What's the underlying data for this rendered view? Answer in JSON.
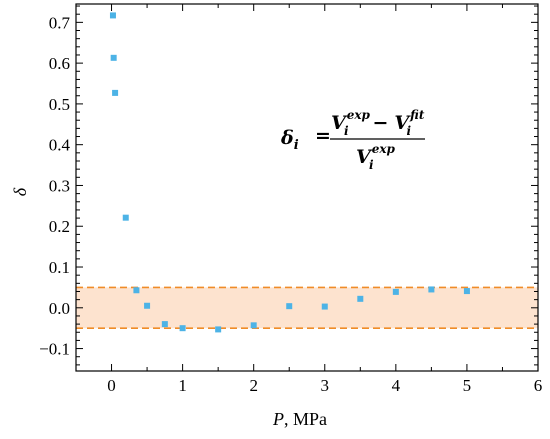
{
  "chart_data": {
    "type": "scatter",
    "xlabel": {
      "var": "P",
      "unit": ", MPa"
    },
    "ylabel": "δ",
    "xlim": [
      -0.5,
      6
    ],
    "ylim": [
      -0.155,
      0.745
    ],
    "xticks": [
      0,
      1,
      2,
      3,
      4,
      5,
      6
    ],
    "xtick_labels": [
      "0",
      "1",
      "2",
      "3",
      "4",
      "5",
      "6"
    ],
    "yticks": [
      -0.1,
      0.0,
      0.1,
      0.2,
      0.3,
      0.4,
      0.5,
      0.6,
      0.7
    ],
    "ytick_labels": [
      "−0.1",
      "0.0",
      "0.1",
      "0.2",
      "0.3",
      "0.4",
      "0.5",
      "0.6",
      "0.7"
    ],
    "grid": false,
    "points": [
      {
        "x": 0.02,
        "y": 0.717
      },
      {
        "x": 0.03,
        "y": 0.613
      },
      {
        "x": 0.05,
        "y": 0.527
      },
      {
        "x": 0.2,
        "y": 0.221
      },
      {
        "x": 0.35,
        "y": 0.043
      },
      {
        "x": 0.5,
        "y": 0.005
      },
      {
        "x": 0.75,
        "y": -0.04
      },
      {
        "x": 1.0,
        "y": -0.05
      },
      {
        "x": 1.5,
        "y": -0.053
      },
      {
        "x": 2.0,
        "y": -0.043
      },
      {
        "x": 2.5,
        "y": 0.004
      },
      {
        "x": 3.0,
        "y": 0.003
      },
      {
        "x": 3.5,
        "y": 0.022
      },
      {
        "x": 4.0,
        "y": 0.039
      },
      {
        "x": 4.5,
        "y": 0.045
      },
      {
        "x": 5.0,
        "y": 0.041
      }
    ],
    "band": {
      "low": -0.05,
      "high": 0.05
    },
    "formula": {
      "lhs": "δ",
      "lhs_sub": "i",
      "num_a": "V",
      "num_a_sub": "i",
      "num_a_sup": "exp",
      "minus": "−",
      "num_b": "V",
      "num_b_sub": "i",
      "num_b_sup": "fit",
      "den": "V",
      "den_sub": "i",
      "den_sup": "exp"
    },
    "colors": {
      "marker": "#4db3e6",
      "band_fill": "#fde3cf",
      "band_line": "#f08c28"
    }
  }
}
